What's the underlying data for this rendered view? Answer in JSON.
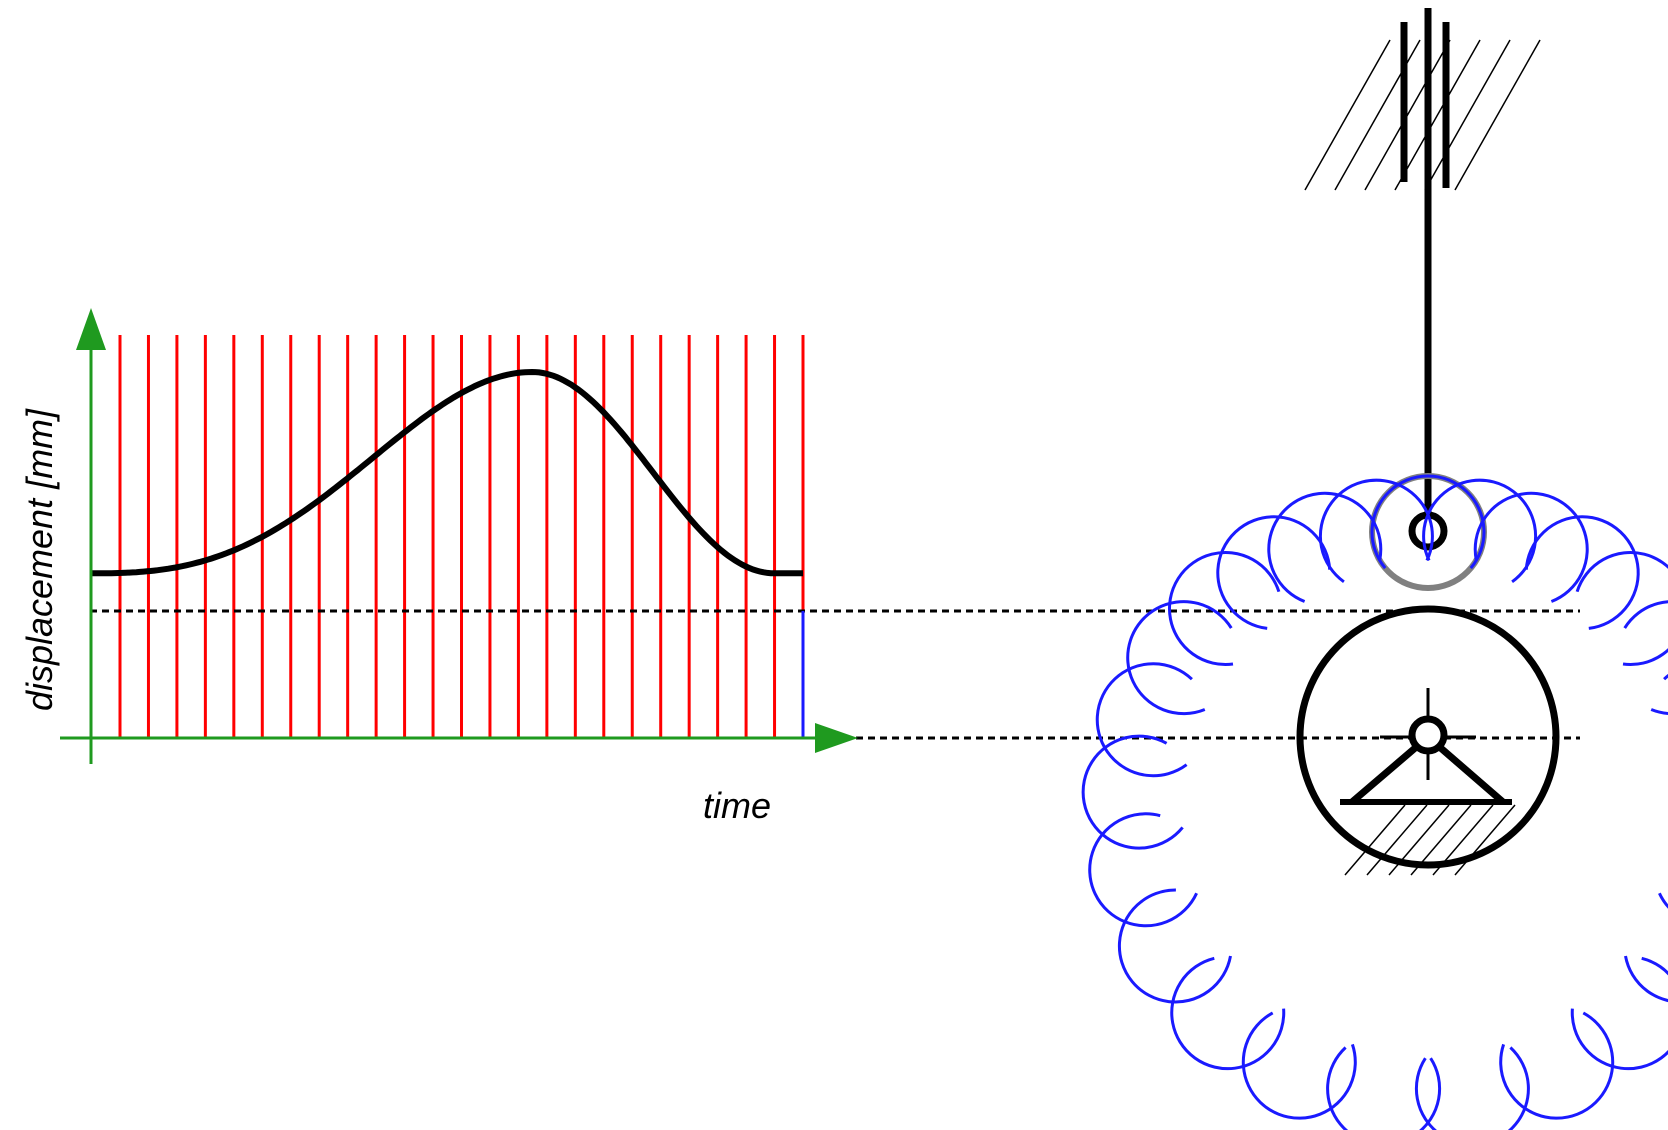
{
  "diagram": {
    "kind": "cam-follower mechanism with displacement diagram",
    "labels": {
      "y_axis": "displacement [mm]",
      "x_axis": "time",
      "caption": "... ... ..."
    },
    "colors": {
      "axis": "#1f9a1f",
      "grid": "#ff0000",
      "curve": "#000000",
      "reference": "#000000",
      "cam_profile_arcs": "#1a1aff",
      "roller": "#808080",
      "last_marker": "#1a1aff"
    },
    "graph": {
      "time_divisions": 25,
      "displacement_profile": {
        "start_level": 0.45,
        "peak_level": 1.0,
        "end_level": 0.45
      }
    },
    "mechanism": {
      "parts": [
        "fixed-guide",
        "follower-rod",
        "roller",
        "cam-base-circle",
        "pivot",
        "support-triangle",
        "ground"
      ],
      "cam_arc_count": 25
    }
  }
}
